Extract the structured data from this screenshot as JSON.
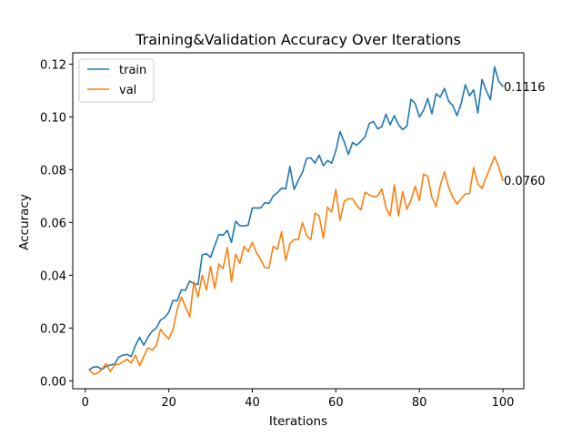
{
  "chart_data": {
    "type": "line",
    "title": "Training&Validation Accuracy Over Iterations",
    "xlabel": "Iterations",
    "ylabel": "Accuracy",
    "xlim": [
      -3,
      105
    ],
    "ylim": [
      -0.003,
      0.1243
    ],
    "xticks": [
      0,
      20,
      40,
      60,
      80,
      100
    ],
    "yticks": [
      0.0,
      0.02,
      0.04,
      0.06,
      0.08,
      0.1,
      0.12
    ],
    "ytick_labels": [
      "0.00",
      "0.02",
      "0.04",
      "0.06",
      "0.08",
      "0.10",
      "0.12"
    ],
    "legend_position": "top-left",
    "grid": false,
    "series": [
      {
        "name": "train",
        "color": "#1f77b4",
        "end_label": "0.1116",
        "x": [
          1,
          2,
          3,
          4,
          5,
          6,
          7,
          8,
          9,
          10,
          11,
          12,
          13,
          14,
          15,
          16,
          17,
          18,
          19,
          20,
          21,
          22,
          23,
          24,
          25,
          26,
          27,
          28,
          29,
          30,
          31,
          32,
          33,
          34,
          35,
          36,
          37,
          38,
          39,
          40,
          41,
          42,
          43,
          44,
          45,
          46,
          47,
          48,
          49,
          50,
          51,
          52,
          53,
          54,
          55,
          56,
          57,
          58,
          59,
          60,
          61,
          62,
          63,
          64,
          65,
          66,
          67,
          68,
          69,
          70,
          71,
          72,
          73,
          74,
          75,
          76,
          77,
          78,
          79,
          80,
          81,
          82,
          83,
          84,
          85,
          86,
          87,
          88,
          89,
          90,
          91,
          92,
          93,
          94,
          95,
          96,
          97,
          98,
          99,
          100
        ],
        "y": [
          0.0043,
          0.0052,
          0.0053,
          0.0043,
          0.0055,
          0.006,
          0.0063,
          0.009,
          0.0097,
          0.01,
          0.0092,
          0.0133,
          0.0165,
          0.0135,
          0.0165,
          0.0188,
          0.02,
          0.023,
          0.024,
          0.026,
          0.0305,
          0.0303,
          0.0345,
          0.0343,
          0.0378,
          0.0368,
          0.0365,
          0.0477,
          0.0482,
          0.0468,
          0.0513,
          0.0555,
          0.0552,
          0.057,
          0.0525,
          0.0605,
          0.0588,
          0.0587,
          0.059,
          0.0655,
          0.0655,
          0.0655,
          0.0675,
          0.0672,
          0.07,
          0.0713,
          0.073,
          0.0728,
          0.0812,
          0.0725,
          0.076,
          0.079,
          0.0843,
          0.0845,
          0.0825,
          0.0855,
          0.0815,
          0.0835,
          0.0825,
          0.0872,
          0.0945,
          0.0905,
          0.0858,
          0.0903,
          0.0893,
          0.0908,
          0.0925,
          0.0975,
          0.0983,
          0.0955,
          0.0963,
          0.101,
          0.097,
          0.1005,
          0.097,
          0.0952,
          0.0965,
          0.1067,
          0.105,
          0.1,
          0.1025,
          0.107,
          0.1012,
          0.1088,
          0.1075,
          0.1108,
          0.106,
          0.1043,
          0.1005,
          0.105,
          0.1122,
          0.108,
          0.1103,
          0.1015,
          0.1142,
          0.11,
          0.1065,
          0.119,
          0.1135,
          0.1116
        ]
      },
      {
        "name": "val",
        "color": "#ff7f0e",
        "end_label": "0.0760",
        "x": [
          1,
          2,
          3,
          4,
          5,
          6,
          7,
          8,
          9,
          10,
          11,
          12,
          13,
          14,
          15,
          16,
          17,
          18,
          19,
          20,
          21,
          22,
          23,
          24,
          25,
          26,
          27,
          28,
          29,
          30,
          31,
          32,
          33,
          34,
          35,
          36,
          37,
          38,
          39,
          40,
          41,
          42,
          43,
          44,
          45,
          46,
          47,
          48,
          49,
          50,
          51,
          52,
          53,
          54,
          55,
          56,
          57,
          58,
          59,
          60,
          61,
          62,
          63,
          64,
          65,
          66,
          67,
          68,
          69,
          70,
          71,
          72,
          73,
          74,
          75,
          76,
          77,
          78,
          79,
          80,
          81,
          82,
          83,
          84,
          85,
          86,
          87,
          88,
          89,
          90,
          91,
          92,
          93,
          94,
          95,
          96,
          97,
          98,
          99,
          100
        ],
        "y": [
          0.004,
          0.0025,
          0.003,
          0.0045,
          0.0065,
          0.0035,
          0.006,
          0.0063,
          0.0072,
          0.0082,
          0.0068,
          0.0097,
          0.0058,
          0.0092,
          0.0125,
          0.0117,
          0.0133,
          0.0195,
          0.0175,
          0.0158,
          0.0195,
          0.027,
          0.0318,
          0.028,
          0.0242,
          0.0375,
          0.0318,
          0.04,
          0.0345,
          0.0433,
          0.035,
          0.0443,
          0.0425,
          0.0505,
          0.0375,
          0.048,
          0.0445,
          0.051,
          0.049,
          0.0525,
          0.0485,
          0.046,
          0.0428,
          0.0428,
          0.051,
          0.0498,
          0.0565,
          0.0457,
          0.052,
          0.0535,
          0.0535,
          0.06,
          0.055,
          0.0535,
          0.0635,
          0.0625,
          0.054,
          0.0658,
          0.064,
          0.0725,
          0.0608,
          0.068,
          0.069,
          0.069,
          0.0665,
          0.0648,
          0.0715,
          0.0705,
          0.0698,
          0.07,
          0.0727,
          0.0655,
          0.0625,
          0.0743,
          0.0625,
          0.0717,
          0.065,
          0.0685,
          0.0737,
          0.0683,
          0.0783,
          0.0775,
          0.0695,
          0.066,
          0.074,
          0.0792,
          0.0733,
          0.0695,
          0.067,
          0.069,
          0.0708,
          0.071,
          0.0808,
          0.0745,
          0.073,
          0.0772,
          0.081,
          0.085,
          0.081,
          0.076
        ]
      }
    ]
  }
}
